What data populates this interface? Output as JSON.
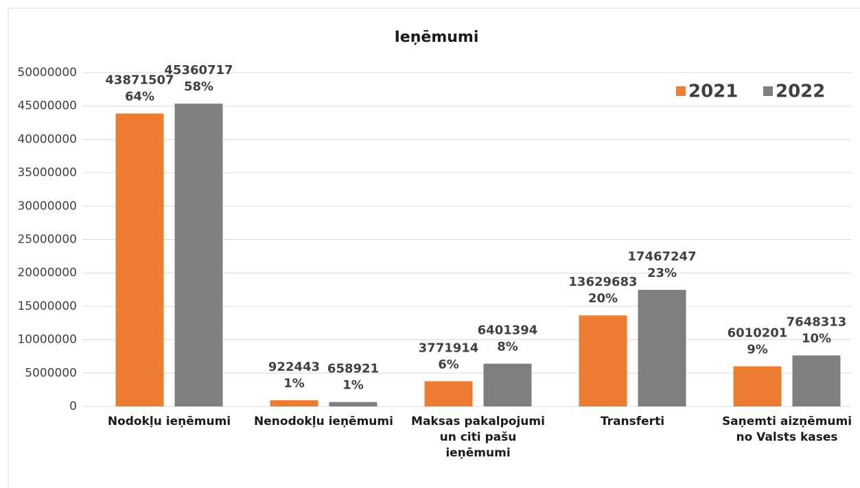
{
  "chart_data": {
    "type": "bar",
    "title": "Ieņēmumi",
    "categories": [
      "Nodokļu ieņēmumi",
      "Nenodokļu ieņēmumi",
      "Maksas pakalpojumi un citi pašu ieņēmumi",
      "Transferti",
      "Saņemti aizņēmumi no Valsts kases"
    ],
    "series": [
      {
        "name": "2021",
        "color": "#ed7d31",
        "values": [
          43871507,
          922443,
          3771914,
          13629683,
          6010201
        ],
        "share_labels": [
          "64%",
          "1%",
          "6%",
          "20%",
          "9%"
        ]
      },
      {
        "name": "2022",
        "color": "#7f7f7f",
        "values": [
          45360717,
          658921,
          6401394,
          17467247,
          7648313
        ],
        "share_labels": [
          "58%",
          "1%",
          "8%",
          "23%",
          "10%"
        ]
      }
    ],
    "ylim": [
      0,
      50000000
    ],
    "yticks": [
      0,
      5000000,
      10000000,
      15000000,
      20000000,
      25000000,
      30000000,
      35000000,
      40000000,
      45000000,
      50000000
    ],
    "grid": true,
    "legend": "top-right"
  }
}
